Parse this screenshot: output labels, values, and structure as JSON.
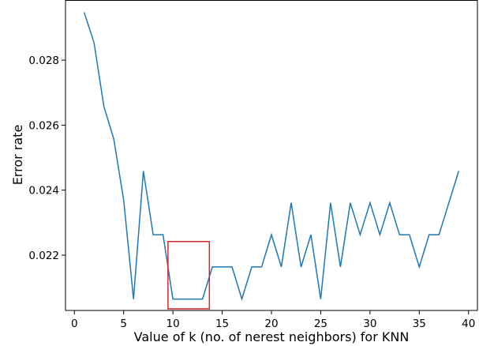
{
  "chart_data": {
    "type": "line",
    "title": "",
    "xlabel": "Value of k (no. of nerest neighbors) for KNN",
    "ylabel": "Error rate",
    "xlim": [
      -0.9,
      40.9
    ],
    "ylim": [
      0.0203,
      0.02985
    ],
    "xticks": [
      0,
      5,
      10,
      15,
      20,
      25,
      30,
      35,
      40
    ],
    "xtick_labels": [
      "0",
      "5",
      "10",
      "15",
      "20",
      "25",
      "30",
      "35",
      "40"
    ],
    "yticks": [
      0.022,
      0.024,
      0.026,
      0.028
    ],
    "ytick_labels": [
      "0.022",
      "0.024",
      "0.026",
      "0.028"
    ],
    "grid": false,
    "series": [
      {
        "color": "#1f77b4",
        "x": [
          1,
          2,
          3,
          4,
          5,
          6,
          7,
          8,
          9,
          10,
          11,
          12,
          13,
          14,
          15,
          16,
          17,
          18,
          19,
          20,
          21,
          22,
          23,
          24,
          25,
          26,
          27,
          28,
          29,
          30,
          31,
          32,
          33,
          34,
          35,
          36,
          37,
          38,
          39
        ],
        "y": [
          0.02947,
          0.02853,
          0.02657,
          0.02557,
          0.0237,
          0.02065,
          0.02459,
          0.02263,
          0.02263,
          0.02065,
          0.02065,
          0.02065,
          0.02065,
          0.02164,
          0.02164,
          0.02164,
          0.02065,
          0.02164,
          0.02164,
          0.02263,
          0.02164,
          0.02361,
          0.02164,
          0.02263,
          0.02065,
          0.02361,
          0.02164,
          0.02361,
          0.02263,
          0.02361,
          0.02263,
          0.02361,
          0.02263,
          0.02263,
          0.02164,
          0.02263,
          0.02263,
          0.02361,
          0.02459
        ]
      }
    ],
    "annotations": [
      {
        "type": "rectangle",
        "color": "#d62728",
        "x_range": [
          9.5,
          13.7
        ],
        "y_range": [
          0.02035,
          0.02242
        ]
      }
    ]
  }
}
